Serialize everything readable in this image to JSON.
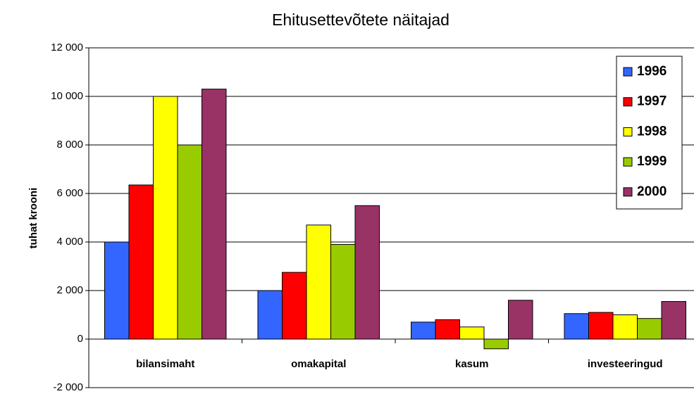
{
  "chart_data": {
    "type": "bar",
    "title": "Ehitusettevõtete näitajad",
    "y_label": "tuhat krooni",
    "categories": [
      "bilansimaht",
      "omakapital",
      "kasum",
      "investeeringud"
    ],
    "series": [
      {
        "name": "1996",
        "color": "#3366ff",
        "values": [
          4000,
          2000,
          700,
          1050
        ]
      },
      {
        "name": "1997",
        "color": "#ff0000",
        "values": [
          6350,
          2750,
          800,
          1100
        ]
      },
      {
        "name": "1998",
        "color": "#ffff00",
        "values": [
          10000,
          4700,
          500,
          1000
        ]
      },
      {
        "name": "1999",
        "color": "#99cc00",
        "values": [
          8000,
          3900,
          -400,
          850
        ]
      },
      {
        "name": "2000",
        "color": "#993366",
        "values": [
          10300,
          5500,
          1600,
          1550
        ]
      }
    ],
    "ylim": [
      -2000,
      12000
    ],
    "yticks": [
      {
        "value": -2000,
        "label": "-2 000"
      },
      0,
      {
        "value": 2000,
        "label": "2 000"
      },
      {
        "value": 4000,
        "label": "4 000"
      },
      {
        "value": 6000,
        "label": "6 000"
      },
      {
        "value": 8000,
        "label": "8 000"
      },
      {
        "value": 10000,
        "label": "10 000"
      },
      {
        "value": 12000,
        "label": "12 000"
      }
    ],
    "grid": true,
    "legend": "upper right"
  }
}
